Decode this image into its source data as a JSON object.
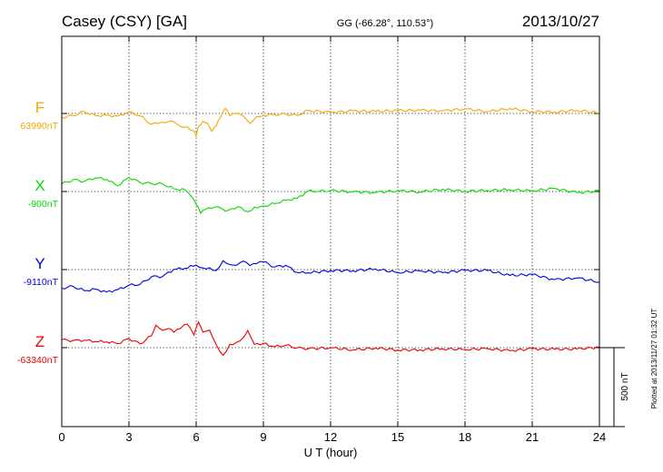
{
  "header": {
    "station": "Casey (CSY)  [GA]",
    "coords": "GG (-66.28°, 110.53°)",
    "date": "2013/10/27"
  },
  "footer": {
    "plotted": "Plotted at 2013/11/27 01:32 UT",
    "scale_label": "500 nT"
  },
  "chart_data": {
    "type": "line",
    "xlabel": "U T (hour)",
    "xlim": [
      0,
      24
    ],
    "xticks": [
      "0",
      "3",
      "6",
      "9",
      "12",
      "15",
      "18",
      "21",
      "24"
    ],
    "scale_nT": 500,
    "grid": true,
    "series": [
      {
        "name": "F",
        "baseline_label": "63990nT",
        "baseline_nT": 63990,
        "color": "#f5a800",
        "hours": [
          0,
          0.5,
          1,
          1.5,
          2,
          2.5,
          3,
          3.5,
          4,
          4.3,
          4.6,
          5,
          5.3,
          5.6,
          5.9,
          6,
          6.1,
          6.3,
          6.5,
          6.7,
          6.9,
          7.1,
          7.3,
          7.5,
          7.8,
          8.1,
          8.4,
          8.7,
          9,
          9.5,
          10,
          10.5,
          11,
          12,
          13,
          14,
          15,
          16,
          17,
          18,
          19,
          20,
          21,
          22,
          23,
          24
        ],
        "delta_nT": [
          -25,
          -10,
          5,
          -5,
          -20,
          -10,
          5,
          -15,
          -65,
          -70,
          -50,
          -60,
          -75,
          -90,
          -110,
          -140,
          -90,
          -40,
          -70,
          -105,
          -80,
          -20,
          35,
          -20,
          10,
          -25,
          -55,
          -25,
          -10,
          -5,
          -10,
          -5,
          10,
          15,
          10,
          15,
          20,
          15,
          25,
          20,
          20,
          25,
          15,
          10,
          15,
          10
        ]
      },
      {
        "name": "X",
        "baseline_label": "-900nT",
        "baseline_nT": -900,
        "color": "#00dd00",
        "hours": [
          0,
          0.5,
          1,
          1.5,
          2,
          2.5,
          3,
          3.5,
          4,
          4.5,
          5,
          5.5,
          5.8,
          6,
          6.2,
          6.4,
          6.7,
          7,
          7.3,
          7.6,
          8,
          8.3,
          8.6,
          9,
          9.5,
          10,
          10.5,
          11,
          11.5,
          12,
          13,
          14,
          15,
          16,
          17,
          18,
          19,
          20,
          21,
          22,
          23,
          24
        ],
        "delta_nT": [
          55,
          70,
          65,
          90,
          70,
          45,
          80,
          65,
          45,
          50,
          20,
          5,
          -25,
          -90,
          -130,
          -120,
          -105,
          -95,
          -130,
          -100,
          -110,
          -120,
          -105,
          -90,
          -75,
          -60,
          -35,
          -5,
          10,
          0,
          0,
          -5,
          0,
          5,
          5,
          10,
          0,
          15,
          5,
          15,
          0,
          -5
        ]
      },
      {
        "name": "Y",
        "baseline_label": "-9110nT",
        "baseline_nT": -9110,
        "color": "#0000dd",
        "hours": [
          0,
          0.5,
          1,
          1.5,
          2,
          2.5,
          3,
          3.5,
          4,
          4.5,
          5,
          5.5,
          6,
          6.3,
          6.6,
          6.9,
          7.2,
          7.5,
          7.8,
          8.1,
          8.4,
          8.7,
          9,
          9.5,
          10,
          10.5,
          11,
          12,
          13,
          14,
          15,
          16,
          17,
          18,
          19,
          20,
          21,
          22,
          23,
          24
        ],
        "delta_nT": [
          -110,
          -115,
          -125,
          -130,
          -140,
          -125,
          -105,
          -85,
          -55,
          -35,
          -5,
          10,
          30,
          5,
          20,
          -15,
          65,
          25,
          30,
          55,
          20,
          45,
          40,
          25,
          20,
          -15,
          -20,
          -10,
          0,
          -5,
          -10,
          -15,
          -15,
          -5,
          -10,
          -30,
          -40,
          -55,
          -60,
          -75
        ]
      },
      {
        "name": "Z",
        "baseline_label": "-63340nT",
        "baseline_nT": -63340,
        "color": "#ee0000",
        "hours": [
          0,
          0.5,
          1,
          1.5,
          2,
          2.5,
          3,
          3.5,
          4,
          4.2,
          4.5,
          4.8,
          5,
          5.3,
          5.6,
          5.9,
          6.1,
          6.3,
          6.6,
          6.9,
          7.2,
          7.5,
          7.8,
          8.1,
          8.3,
          8.6,
          9,
          9.5,
          10,
          10.5,
          11,
          12,
          13,
          14,
          15,
          16,
          17,
          18,
          19,
          20,
          21,
          22,
          23,
          24
        ],
        "delta_nT": [
          50,
          40,
          55,
          30,
          45,
          20,
          60,
          25,
          70,
          150,
          100,
          130,
          90,
          125,
          150,
          75,
          170,
          90,
          120,
          10,
          -45,
          20,
          30,
          70,
          100,
          30,
          20,
          10,
          15,
          -5,
          0,
          -10,
          -5,
          -10,
          -10,
          -15,
          -10,
          -5,
          -15,
          -10,
          -15,
          -5,
          -10,
          0
        ]
      }
    ]
  }
}
